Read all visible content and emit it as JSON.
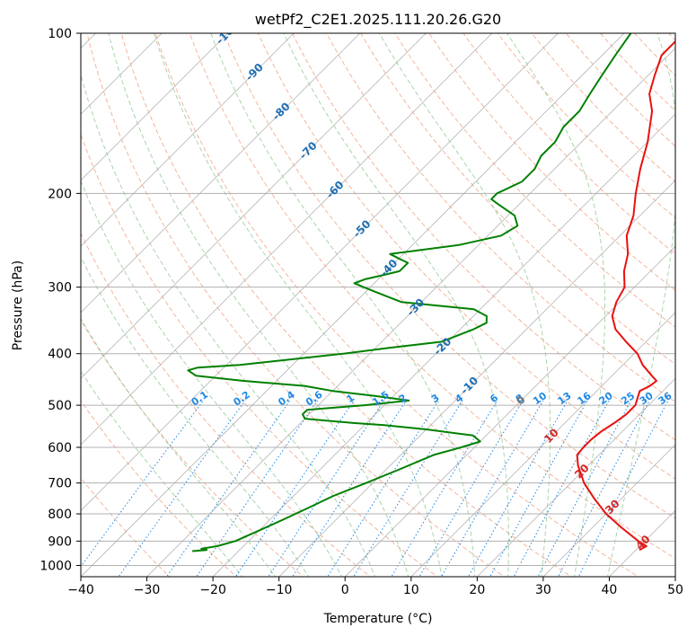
{
  "chart_data": {
    "type": "line",
    "title": "wetPf2_C2E1.2025.111.20.26.G20",
    "xlabel": "Temperature (°C)",
    "ylabel": "Pressure (hPa)",
    "xlim": [
      -40,
      50
    ],
    "ylim": [
      1050,
      100
    ],
    "y_scale": "log",
    "grid": true,
    "x_ticks": [
      -40,
      -30,
      -20,
      -10,
      0,
      10,
      20,
      30,
      40,
      50
    ],
    "x_tick_labels": [
      "−40",
      "−30",
      "−20",
      "−10",
      "0",
      "10",
      "20",
      "30",
      "40",
      "50"
    ],
    "y_ticks": [
      100,
      200,
      300,
      400,
      500,
      600,
      700,
      800,
      900,
      1000
    ],
    "y_tick_labels": [
      "100",
      "200",
      "300",
      "400",
      "500",
      "600",
      "700",
      "800",
      "900",
      "1000"
    ],
    "skew_temperature_labels": [
      -100,
      -90,
      -80,
      -70,
      -60,
      -50,
      -40,
      -30,
      -20,
      -10,
      0,
      10,
      20,
      30,
      40
    ],
    "mixing_ratio_labels": [
      "0.1",
      "0.2",
      "0.4",
      "0.6",
      "1",
      "1.5",
      "2",
      "3",
      "4",
      "6",
      "8",
      "10",
      "13",
      "16",
      "20",
      "25",
      "30",
      "36"
    ],
    "colors": {
      "temperature": "#e8110f",
      "dewpoint": "#008000",
      "isotherm": "#b4b4b4",
      "isotherm_label_cold": "#1f6fb3",
      "isotherm_label_warm": "#d62728",
      "dry_adiabat": "#f0a080",
      "moist_adiabat": "#90c890",
      "mixing_ratio": "#1e88e5",
      "grid": "#b0b0b0"
    },
    "series": [
      {
        "role": "temperature",
        "p": [
          935,
          920,
          900,
          850,
          800,
          750,
          700,
          650,
          620,
          600,
          580,
          560,
          540,
          520,
          500,
          480,
          470,
          460,
          450,
          440,
          420,
          400,
          380,
          360,
          340,
          320,
          300,
          280,
          260,
          240,
          220,
          200,
          180,
          160,
          140,
          130,
          120,
          110,
          105,
          100
        ],
        "t": [
          40.5,
          41,
          39,
          34.5,
          30,
          26,
          22,
          18.5,
          16.7,
          16.5,
          16.5,
          16.8,
          17.5,
          18,
          18,
          17,
          16.5,
          17.3,
          17.5,
          16,
          13,
          10.5,
          7,
          3.5,
          1,
          -0.5,
          -1.5,
          -4,
          -6,
          -9,
          -11,
          -14,
          -17,
          -20,
          -24,
          -27,
          -29,
          -31,
          -31,
          -31
        ]
      },
      {
        "role": "dewpoint",
        "p": [
          940,
          935,
          930,
          920,
          900,
          860,
          820,
          780,
          740,
          700,
          660,
          620,
          600,
          585,
          570,
          555,
          545,
          540,
          530,
          520,
          510,
          500,
          490,
          480,
          470,
          460,
          450,
          440,
          430,
          425,
          420,
          410,
          400,
          390,
          380,
          360,
          350,
          340,
          330,
          320,
          310,
          300,
          295,
          290,
          285,
          280,
          270,
          265,
          260,
          250,
          240,
          230,
          220,
          210,
          205,
          200,
          190,
          180,
          170,
          160,
          150,
          140,
          130,
          120,
          110,
          100
        ],
        "td": [
          -27,
          -25,
          -26,
          -24,
          -22,
          -20,
          -18,
          -16,
          -14,
          -11,
          -8,
          -5,
          -2,
          0,
          -2,
          -10,
          -17,
          -22,
          -30,
          -31,
          -31,
          -23,
          -17,
          -23,
          -30,
          -35,
          -45,
          -53,
          -55,
          -54,
          -48,
          -41,
          -34,
          -28,
          -21,
          -18,
          -17,
          -18,
          -21,
          -33,
          -37,
          -41,
          -43,
          -42,
          -40,
          -38,
          -38,
          -40,
          -42,
          -33,
          -28,
          -27,
          -29,
          -33,
          -35,
          -35,
          -33,
          -33,
          -34,
          -34,
          -35,
          -35,
          -36,
          -37,
          -38,
          -39
        ]
      }
    ]
  }
}
